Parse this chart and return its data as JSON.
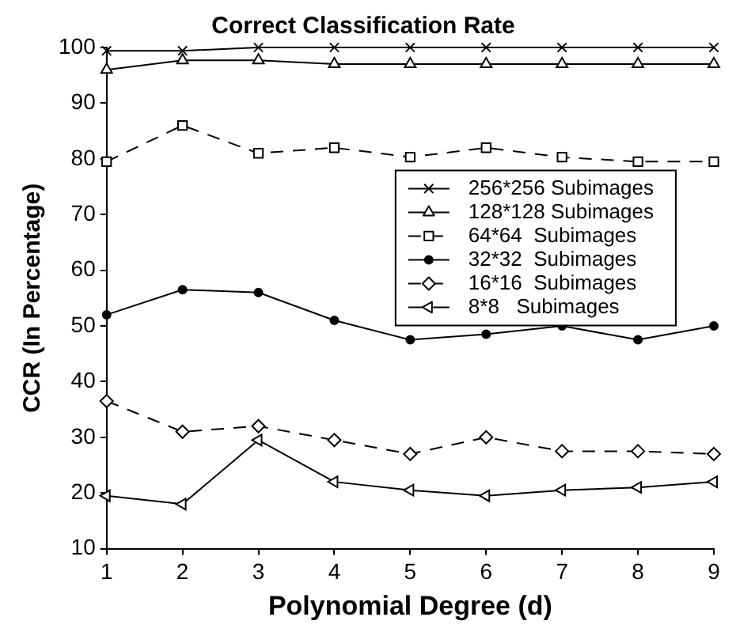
{
  "chart_data": {
    "type": "line",
    "title": "Correct Classification Rate",
    "xlabel": "Polynomial Degree (d)",
    "ylabel": "CCR (In Percentage)",
    "x": [
      1,
      2,
      3,
      4,
      5,
      6,
      7,
      8,
      9
    ],
    "series": [
      {
        "name": "256*256 Subimages",
        "color": "#000000",
        "marker": "cross",
        "line_style": "solid",
        "values": [
          99.4,
          99.4,
          100,
          100,
          100,
          100,
          100,
          100,
          100
        ]
      },
      {
        "name": "128*128 Subimages",
        "color": "#000000",
        "marker": "triangle",
        "line_style": "solid",
        "values": [
          96,
          97.7,
          97.7,
          97,
          97,
          97,
          97,
          97,
          97
        ]
      },
      {
        "name": "64*64  Subimages",
        "color": "#000000",
        "marker": "square",
        "line_style": "dashed",
        "values": [
          79.5,
          86,
          81,
          82,
          80.3,
          82,
          80.3,
          79.5,
          79.5
        ]
      },
      {
        "name": "32*32  Subimages",
        "color": "#000000",
        "marker": "circle",
        "line_style": "solid",
        "values": [
          52,
          56.5,
          56,
          51,
          47.5,
          48.5,
          50,
          47.5,
          50
        ]
      },
      {
        "name": "16*16  Subimages",
        "color": "#000000",
        "marker": "diamond",
        "line_style": "dashed",
        "values": [
          36.5,
          31,
          32,
          29.5,
          27,
          30,
          27.5,
          27.5,
          27
        ]
      },
      {
        "name": "8*8   Subimages",
        "color": "#000000",
        "marker": "triangle",
        "line_style": "solid",
        "values": [
          19.5,
          18,
          29.5,
          22,
          20.5,
          19.5,
          20.5,
          21,
          22
        ]
      }
    ],
    "xlim": [
      1,
      9
    ],
    "xticks": [
      1,
      2,
      3,
      4,
      5,
      6,
      7,
      8,
      9
    ],
    "ylim": [
      10,
      100
    ],
    "yticks": [
      10,
      20,
      30,
      40,
      50,
      60,
      70,
      80,
      90,
      100
    ],
    "grid": false,
    "legend": "right"
  }
}
